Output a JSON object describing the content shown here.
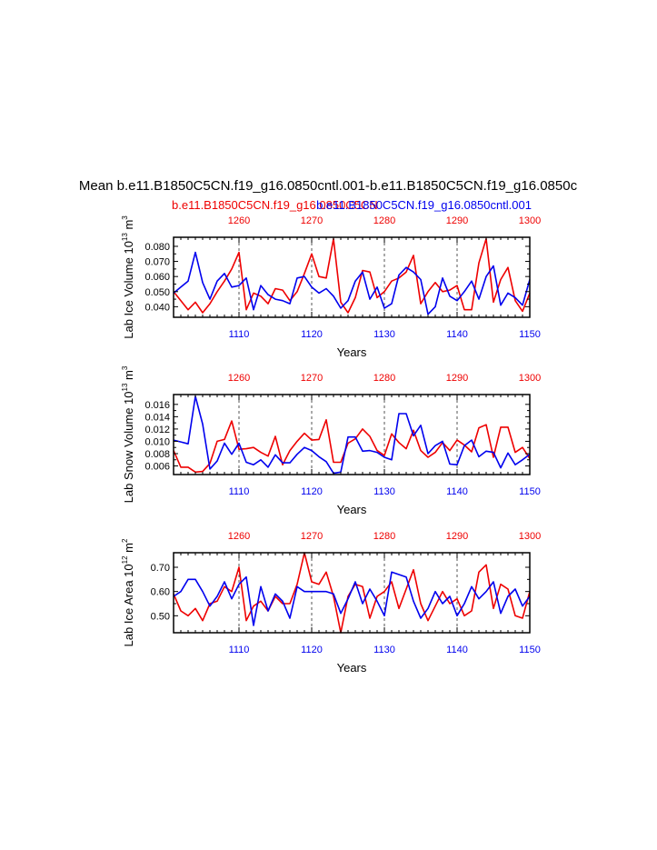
{
  "title": "Mean b.e11.B1850C5CN.f19_g16.0850cntl.001-b.e11.B1850C5CN.f19_g16.0850c",
  "subtitle_case_red": "b.e11.B1850C5CN.f19_g16.0850C5CN",
  "subtitle_case_blue": "b.e11.B1850C5CN.f19_g16.0850cntl.001",
  "colors": {
    "red": "#ee0000",
    "blue": "#0000ee",
    "gridline": "#555555"
  },
  "chart_data": [
    {
      "type": "line",
      "name": "ice-volume",
      "ylabel": "Lab Ice Volume",
      "ylabel_unit_base": "10",
      "ylabel_unit_exp": "13",
      "ylabel_unit_m": "m",
      "ylabel_unit_m_exp": "3",
      "xlabel": "Years",
      "ylim": [
        0.033,
        0.086
      ],
      "yticks": [
        0.04,
        0.05,
        0.06,
        0.07,
        0.08
      ],
      "ytick_labels": [
        "0.040",
        "0.050",
        "0.060",
        "0.070",
        "0.080"
      ],
      "x_bottom": {
        "range": [
          1101,
          1150
        ],
        "ticks": [
          1110,
          1120,
          1130,
          1140,
          1150
        ],
        "labels": [
          "1110",
          "1120",
          "1130",
          "1140",
          "1150"
        ]
      },
      "x_top": {
        "range": [
          1251,
          1300
        ],
        "ticks": [
          1260,
          1270,
          1280,
          1290,
          1300
        ],
        "labels": [
          "1260",
          "1270",
          "1280",
          "1290",
          "1300"
        ]
      },
      "series": [
        {
          "name": "b.e11.B1850C5CN.f19_g16.0850C5CN",
          "color": "#ee0000",
          "values": [
            0.05,
            0.044,
            0.038,
            0.043,
            0.036,
            0.042,
            0.05,
            0.057,
            0.065,
            0.076,
            0.038,
            0.049,
            0.047,
            0.042,
            0.052,
            0.051,
            0.044,
            0.05,
            0.062,
            0.075,
            0.06,
            0.059,
            0.085,
            0.043,
            0.036,
            0.046,
            0.064,
            0.063,
            0.046,
            0.05,
            0.057,
            0.059,
            0.063,
            0.074,
            0.042,
            0.05,
            0.056,
            0.05,
            0.051,
            0.054,
            0.038,
            0.038,
            0.069,
            0.085,
            0.043,
            0.058,
            0.066,
            0.044,
            0.037,
            0.049
          ]
        },
        {
          "name": "b.e11.B1850C5CN.f19_g16.0850cntl.001",
          "color": "#0000ee",
          "values": [
            0.049,
            0.053,
            0.057,
            0.076,
            0.056,
            0.045,
            0.057,
            0.062,
            0.053,
            0.054,
            0.059,
            0.038,
            0.054,
            0.048,
            0.045,
            0.044,
            0.042,
            0.059,
            0.06,
            0.053,
            0.049,
            0.052,
            0.047,
            0.039,
            0.044,
            0.057,
            0.063,
            0.045,
            0.053,
            0.039,
            0.042,
            0.061,
            0.066,
            0.063,
            0.058,
            0.035,
            0.04,
            0.059,
            0.047,
            0.044,
            0.05,
            0.057,
            0.045,
            0.06,
            0.067,
            0.041,
            0.049,
            0.046,
            0.041,
            0.058
          ]
        }
      ]
    },
    {
      "type": "line",
      "name": "snow-volume",
      "ylabel": "Lab Snow Volume",
      "ylabel_unit_base": "10",
      "ylabel_unit_exp": "13",
      "ylabel_unit_m": "m",
      "ylabel_unit_m_exp": "3",
      "xlabel": "Years",
      "ylim": [
        0.0046,
        0.0176
      ],
      "yticks": [
        0.006,
        0.008,
        0.01,
        0.012,
        0.014,
        0.016
      ],
      "ytick_labels": [
        "0.006",
        "0.008",
        "0.010",
        "0.012",
        "0.014",
        "0.016"
      ],
      "x_bottom": {
        "range": [
          1101,
          1150
        ],
        "ticks": [
          1110,
          1120,
          1130,
          1140,
          1150
        ],
        "labels": [
          "1110",
          "1120",
          "1130",
          "1140",
          "1150"
        ]
      },
      "x_top": {
        "range": [
          1251,
          1300
        ],
        "ticks": [
          1260,
          1270,
          1280,
          1290,
          1300
        ],
        "labels": [
          "1260",
          "1270",
          "1280",
          "1290",
          "1300"
        ]
      },
      "series": [
        {
          "name": "b.e11.B1850C5CN.f19_g16.0850C5CN",
          "color": "#ee0000",
          "values": [
            0.0085,
            0.0058,
            0.0058,
            0.005,
            0.0051,
            0.0064,
            0.01,
            0.0103,
            0.0133,
            0.0087,
            0.0088,
            0.009,
            0.0082,
            0.0076,
            0.0108,
            0.0062,
            0.0085,
            0.01,
            0.0113,
            0.0102,
            0.0103,
            0.0135,
            0.0066,
            0.0066,
            0.0097,
            0.0104,
            0.012,
            0.0108,
            0.0085,
            0.0077,
            0.0112,
            0.0098,
            0.0088,
            0.0118,
            0.0085,
            0.0074,
            0.0082,
            0.0098,
            0.0085,
            0.0102,
            0.0094,
            0.0083,
            0.0122,
            0.0127,
            0.0074,
            0.0123,
            0.0123,
            0.0082,
            0.009,
            0.0072
          ]
        },
        {
          "name": "b.e11.B1850C5CN.f19_g16.0850cntl.001",
          "color": "#0000ee",
          "values": [
            0.0102,
            0.0099,
            0.0096,
            0.0173,
            0.0128,
            0.0055,
            0.0068,
            0.0097,
            0.0079,
            0.0097,
            0.0066,
            0.0062,
            0.007,
            0.0058,
            0.0078,
            0.0065,
            0.0065,
            0.0079,
            0.009,
            0.0085,
            0.0075,
            0.0067,
            0.0048,
            0.005,
            0.0107,
            0.0107,
            0.0084,
            0.0085,
            0.0082,
            0.0074,
            0.007,
            0.0145,
            0.0145,
            0.0109,
            0.0126,
            0.008,
            0.0093,
            0.01,
            0.0063,
            0.0062,
            0.0093,
            0.0102,
            0.0075,
            0.0084,
            0.0082,
            0.0057,
            0.0081,
            0.0062,
            0.007,
            0.0079
          ]
        }
      ]
    },
    {
      "type": "line",
      "name": "ice-area",
      "ylabel": "Lab Ice Area",
      "ylabel_unit_base": "10",
      "ylabel_unit_exp": "12",
      "ylabel_unit_m": "m",
      "ylabel_unit_m_exp": "2",
      "xlabel": "Years",
      "ylim": [
        0.43,
        0.76
      ],
      "yticks": [
        0.5,
        0.6,
        0.7
      ],
      "ytick_labels": [
        "0.50",
        "0.60",
        "0.70"
      ],
      "x_bottom": {
        "range": [
          1101,
          1150
        ],
        "ticks": [
          1110,
          1120,
          1130,
          1140,
          1150
        ],
        "labels": [
          "1110",
          "1120",
          "1130",
          "1140",
          "1150"
        ]
      },
      "x_top": {
        "range": [
          1251,
          1300
        ],
        "ticks": [
          1260,
          1270,
          1280,
          1290,
          1300
        ],
        "labels": [
          "1260",
          "1270",
          "1280",
          "1290",
          "1300"
        ]
      },
      "series": [
        {
          "name": "b.e11.B1850C5CN.f19_g16.0850C5CN",
          "color": "#ee0000",
          "values": [
            0.59,
            0.52,
            0.5,
            0.53,
            0.48,
            0.55,
            0.56,
            0.62,
            0.6,
            0.7,
            0.48,
            0.54,
            0.56,
            0.52,
            0.58,
            0.55,
            0.55,
            0.63,
            0.76,
            0.64,
            0.63,
            0.68,
            0.58,
            0.43,
            0.58,
            0.63,
            0.62,
            0.49,
            0.58,
            0.6,
            0.64,
            0.53,
            0.61,
            0.69,
            0.55,
            0.48,
            0.54,
            0.6,
            0.55,
            0.57,
            0.5,
            0.52,
            0.68,
            0.71,
            0.53,
            0.63,
            0.61,
            0.5,
            0.49,
            0.6
          ]
        },
        {
          "name": "b.e11.B1850C5CN.f19_g16.0850cntl.001",
          "color": "#0000ee",
          "values": [
            0.58,
            0.6,
            0.65,
            0.65,
            0.6,
            0.54,
            0.58,
            0.64,
            0.57,
            0.63,
            0.66,
            0.46,
            0.62,
            0.52,
            0.59,
            0.56,
            0.49,
            0.62,
            0.6,
            0.6,
            0.6,
            0.6,
            0.59,
            0.51,
            0.57,
            0.64,
            0.55,
            0.61,
            0.56,
            0.5,
            0.68,
            0.67,
            0.66,
            0.56,
            0.49,
            0.53,
            0.6,
            0.55,
            0.58,
            0.5,
            0.55,
            0.62,
            0.57,
            0.6,
            0.64,
            0.51,
            0.58,
            0.61,
            0.54,
            0.58
          ]
        }
      ]
    }
  ]
}
